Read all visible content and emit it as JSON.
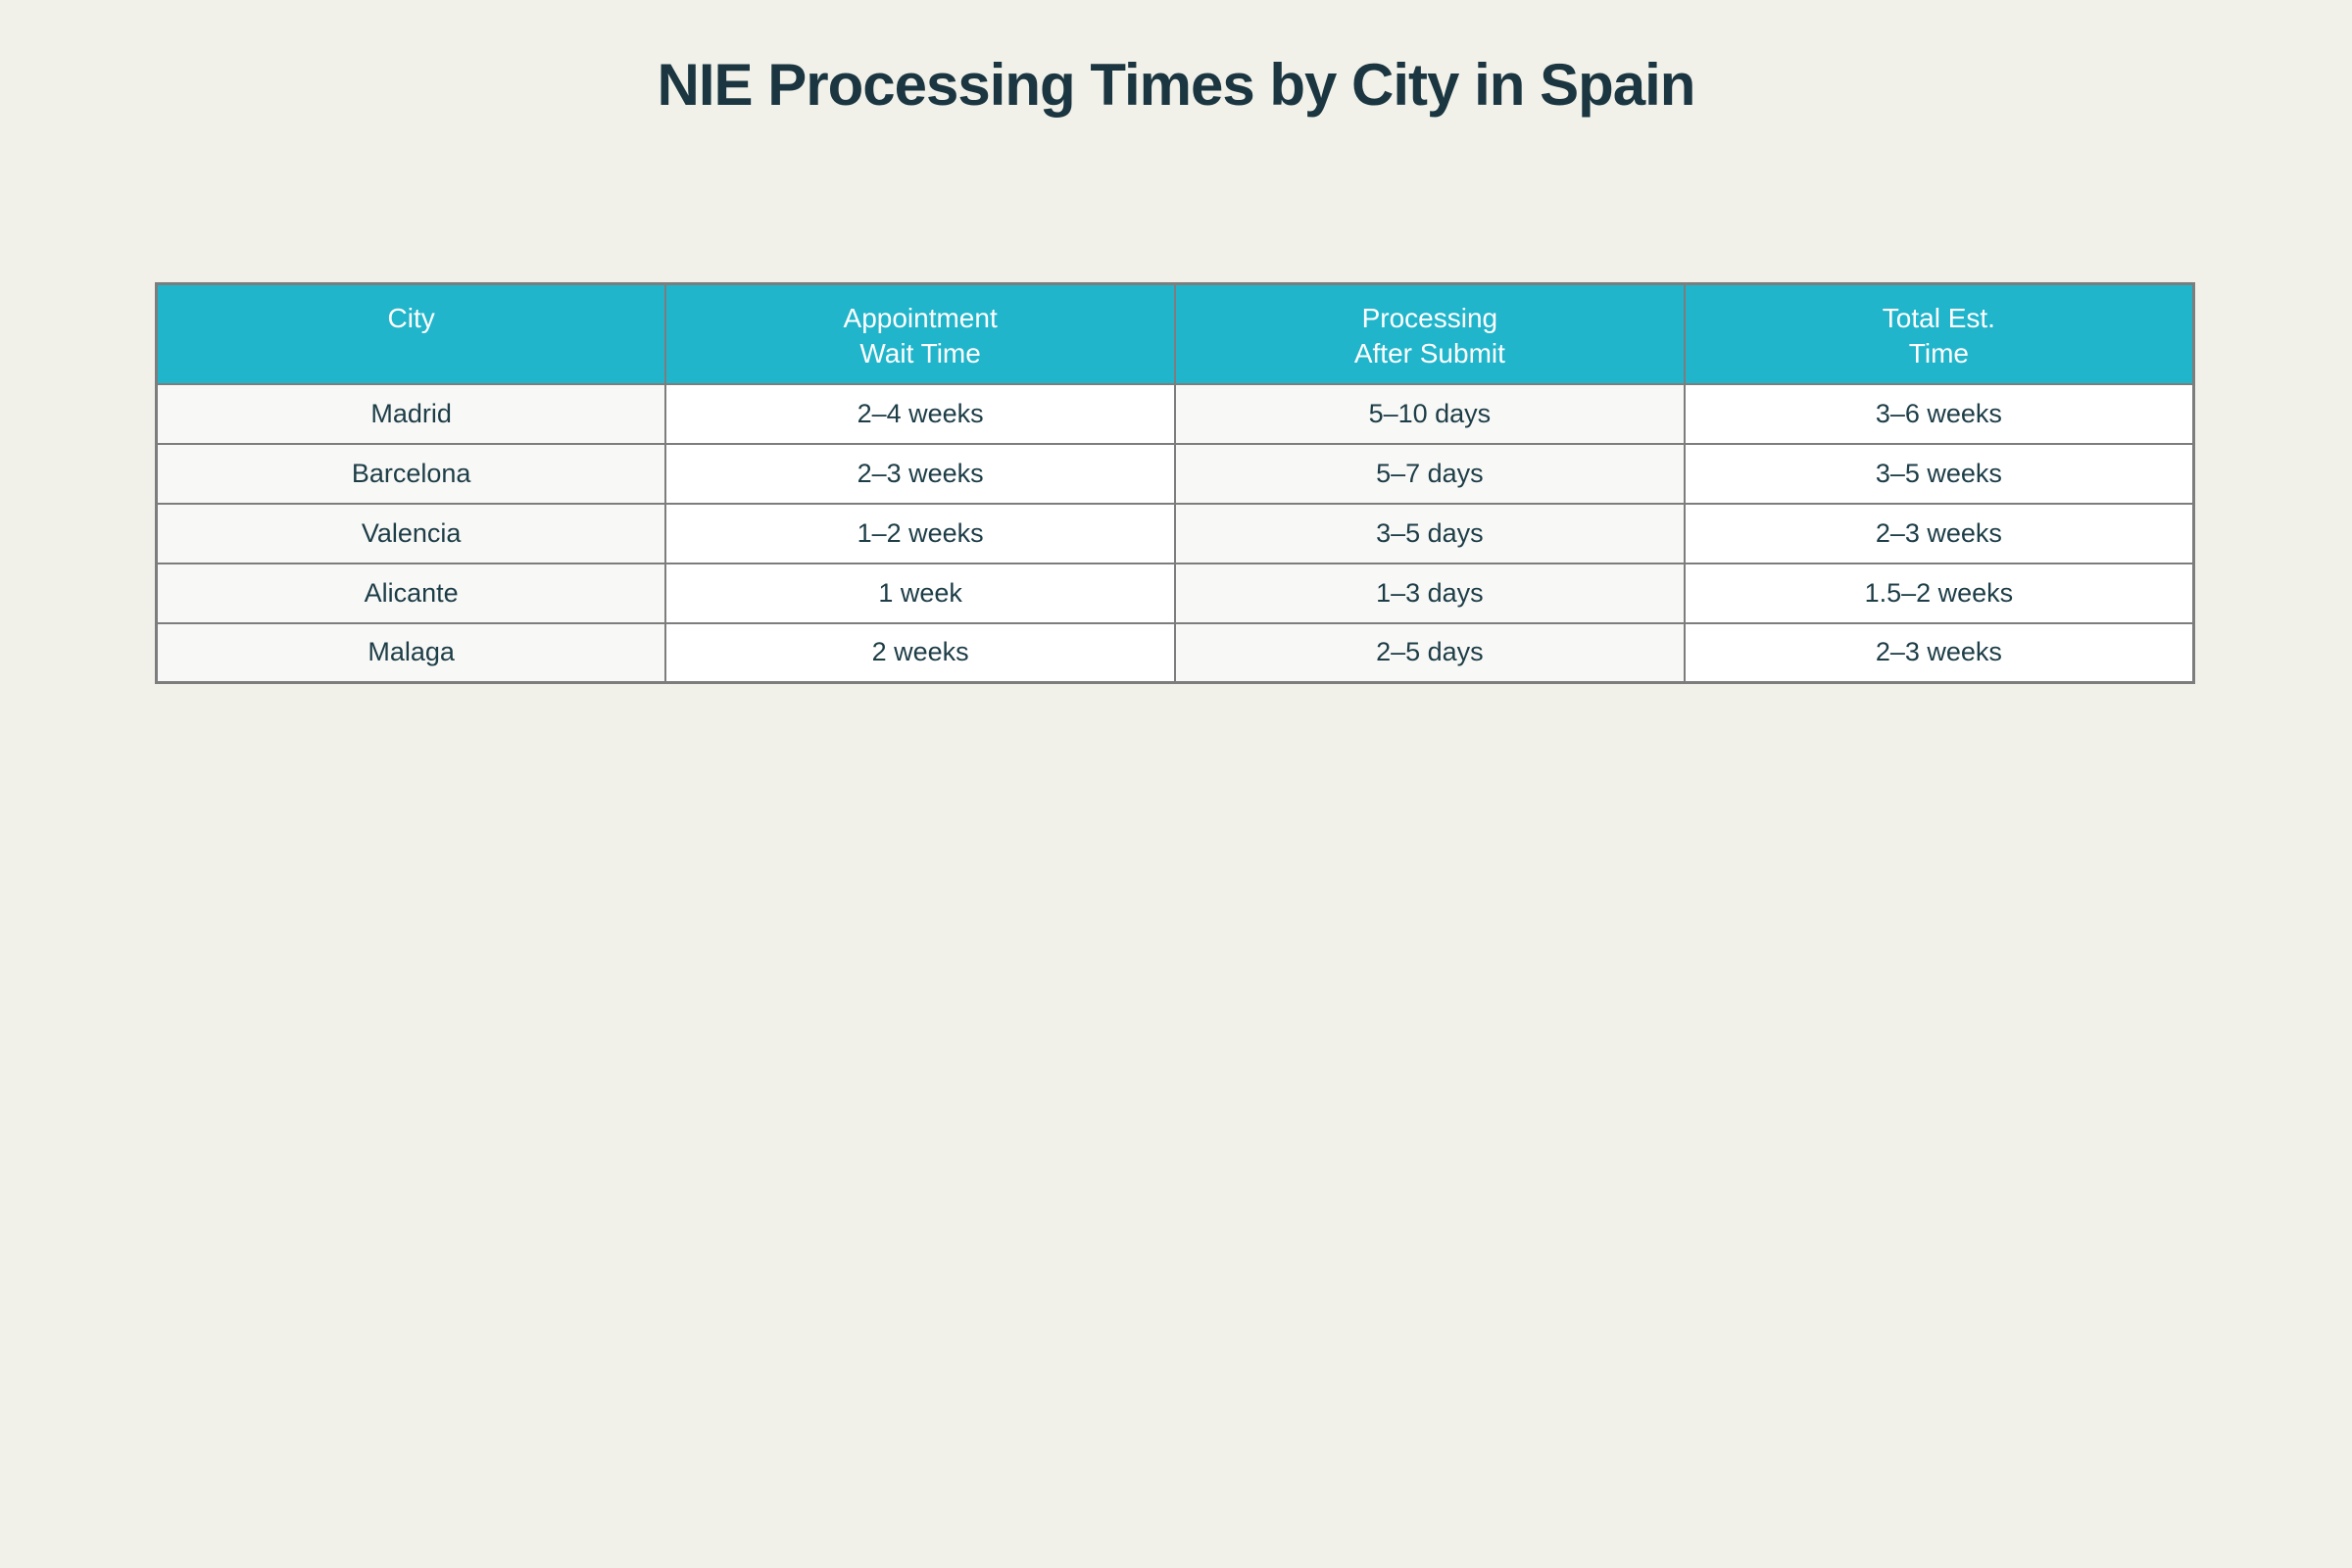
{
  "page": {
    "title": "NIE Processing Times by City in Spain"
  },
  "colors": {
    "page_background": "#f1f1ea",
    "header_background": "#20b5cb",
    "header_text": "#ffffff",
    "cell_text": "#1d3d47",
    "title_text": "#1b3640",
    "border": "#7d7d7d",
    "striped_column_background": "#f8f8f6",
    "plain_column_background": "#ffffff"
  },
  "table": {
    "columns": [
      {
        "line1": "City",
        "line2": ""
      },
      {
        "line1": "Appointment",
        "line2": "Wait Time"
      },
      {
        "line1": "Processing",
        "line2": "After Submit"
      },
      {
        "line1": "Total Est.",
        "line2": "Time"
      }
    ],
    "rows": [
      {
        "city": "Madrid",
        "appointment_wait": "2–4 weeks",
        "processing_after_submit": "5–10 days",
        "total_est": "3–6 weeks"
      },
      {
        "city": "Barcelona",
        "appointment_wait": "2–3 weeks",
        "processing_after_submit": "5–7 days",
        "total_est": "3–5 weeks"
      },
      {
        "city": "Valencia",
        "appointment_wait": "1–2 weeks",
        "processing_after_submit": "3–5 days",
        "total_est": "2–3 weeks"
      },
      {
        "city": "Alicante",
        "appointment_wait": "1 week",
        "processing_after_submit": "1–3 days",
        "total_est": "1.5–2 weeks"
      },
      {
        "city": "Malaga",
        "appointment_wait": "2 weeks",
        "processing_after_submit": "2–5 days",
        "total_est": "2–3 weeks"
      }
    ]
  },
  "chart_data": {
    "type": "table",
    "title": "NIE Processing Times by City in Spain",
    "columns": [
      "City",
      "Appointment Wait Time",
      "Processing After Submit",
      "Total Est. Time"
    ],
    "rows": [
      [
        "Madrid",
        "2–4 weeks",
        "5–10 days",
        "3–6 weeks"
      ],
      [
        "Barcelona",
        "2–3 weeks",
        "5–7 days",
        "3–5 weeks"
      ],
      [
        "Valencia",
        "1–2 weeks",
        "3–5 days",
        "2–3 weeks"
      ],
      [
        "Alicante",
        "1 week",
        "1–3 days",
        "1.5–2 weeks"
      ],
      [
        "Malaga",
        "2 weeks",
        "2–5 days",
        "2–3 weeks"
      ]
    ],
    "legend_position": "none",
    "grid": true
  }
}
